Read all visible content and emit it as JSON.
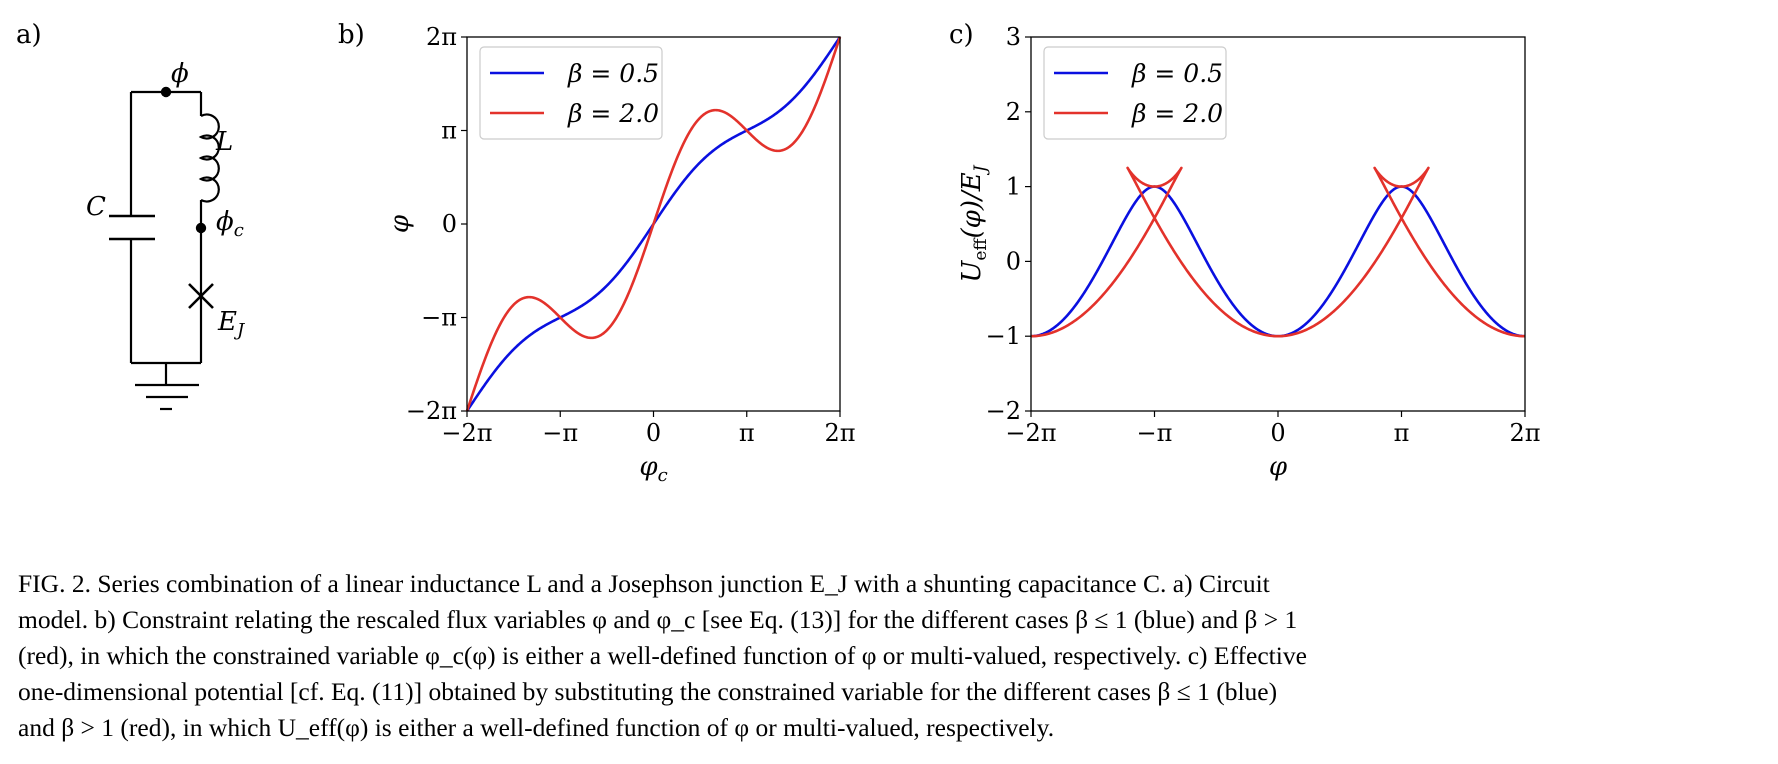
{
  "panels": {
    "a": "a)",
    "b": "b)",
    "c": "c)"
  },
  "circuit": {
    "node_top": "ϕ",
    "inductor": "L",
    "capacitor": "C",
    "node_mid_base": "ϕ",
    "node_mid_sub": "c",
    "junction_base": "E",
    "junction_sub": "J"
  },
  "colors": {
    "blue": "#0a10e0",
    "red": "#e3322b"
  },
  "chart_data": [
    {
      "id": "b",
      "type": "line",
      "xlabel": "φc",
      "ylabel": "φ",
      "xlim": [
        -6.2832,
        6.2832
      ],
      "ylim": [
        -6.2832,
        6.2832
      ],
      "xticks": [
        -6.2832,
        -3.1416,
        0,
        3.1416,
        6.2832
      ],
      "xtick_labels": [
        "−2π",
        "−π",
        "0",
        "π",
        "2π"
      ],
      "yticks": [
        -6.2832,
        -3.1416,
        0,
        3.1416,
        6.2832
      ],
      "ytick_labels": [
        "−2π",
        "−π",
        "0",
        "π",
        "2π"
      ],
      "legend_placement": "top-left",
      "grid": false,
      "x": [
        -6.2832,
        -5.4978,
        -4.7124,
        -3.927,
        -3.1416,
        -2.3562,
        -1.5708,
        -0.7854,
        0,
        0.7854,
        1.5708,
        2.3562,
        3.1416,
        3.927,
        4.7124,
        5.4978,
        6.2832
      ],
      "series": [
        {
          "name": "β = 0.5",
          "color": "#0a10e0",
          "y": [
            -6.2832,
            -5.1442,
            -4.2124,
            -3.5806,
            -3.1416,
            -2.7026,
            -2.0708,
            -1.1388,
            0,
            1.1388,
            2.0708,
            2.7026,
            3.1416,
            3.5806,
            4.2124,
            5.1442,
            6.2832
          ]
        },
        {
          "name": "β = 2.0",
          "color": "#e3322b",
          "y": [
            -6.2832,
            -4.0836,
            -2.7124,
            -2.5128,
            -3.1416,
            -3.7704,
            -3.5708,
            -2.1996,
            0,
            2.1996,
            3.5708,
            3.7704,
            3.1416,
            2.5128,
            2.7124,
            4.0836,
            6.2832
          ]
        }
      ]
    },
    {
      "id": "c",
      "type": "line",
      "xlabel": "φ",
      "ylabel_main": "U",
      "ylabel_sub": "eff",
      "ylabel_tail": "(φ)/E",
      "ylabel_tail_sub": "J",
      "xlim": [
        -6.2832,
        6.2832
      ],
      "ylim": [
        -2,
        3
      ],
      "xticks": [
        -6.2832,
        -3.1416,
        0,
        3.1416,
        6.2832
      ],
      "xtick_labels": [
        "−2π",
        "−π",
        "0",
        "π",
        "2π"
      ],
      "yticks": [
        -2,
        -1,
        0,
        1,
        2,
        3
      ],
      "ytick_labels": [
        "−2",
        "−1",
        "0",
        "1",
        "2",
        "3"
      ],
      "legend_placement": "top-left",
      "grid": false,
      "model": "parametric in φc: φ = φc + β sin φc, U = (φ − φc)²/(2β) − cos φc",
      "series": [
        {
          "name": "β = 0.5",
          "color": "#0a10e0",
          "beta": 0.5
        },
        {
          "name": "β = 2.0",
          "color": "#e3322b",
          "beta": 2.0
        }
      ]
    }
  ],
  "caption": {
    "line1": "FIG. 2.   Series combination of a linear inductance L and a Josephson junction E_J with a shunting capacitance C. a) Circuit",
    "line2": "model. b) Constraint relating the rescaled flux variables φ and φ_c [see Eq. (13)] for the different cases β ≤ 1 (blue) and β > 1",
    "line3": "(red), in which the constrained variable φ_c(φ) is either a well-defined function of φ or multi-valued, respectively. c) Effective",
    "line4": "one-dimensional potential [cf. Eq. (11)] obtained by substituting the constrained variable for the different cases β ≤ 1 (blue)",
    "line5": "and β > 1 (red), in which U_eff(φ) is either a well-defined function of φ or multi-valued, respectively."
  }
}
